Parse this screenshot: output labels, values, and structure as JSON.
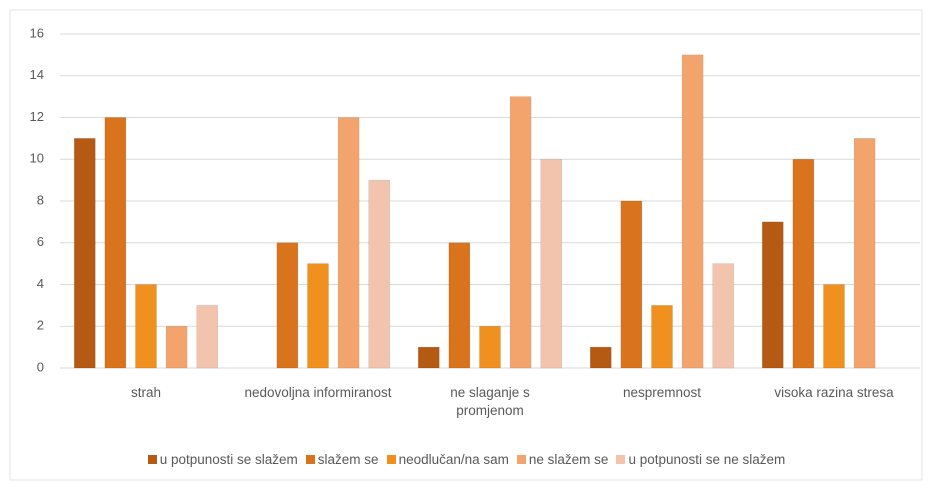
{
  "chart_data": {
    "type": "bar",
    "categories": [
      "strah",
      "nedovoljna informiranost",
      "ne slaganje s promjenom",
      "nespremnost",
      "visoka razina stresa"
    ],
    "series": [
      {
        "name": "u potpunosti se slažem",
        "color": "#b55a12",
        "values": [
          11,
          0,
          1,
          1,
          7
        ]
      },
      {
        "name": "slažem se",
        "color": "#d9731c",
        "values": [
          12,
          6,
          6,
          8,
          10
        ]
      },
      {
        "name": "neodlučan/na sam",
        "color": "#f0901f",
        "values": [
          4,
          5,
          2,
          3,
          4
        ]
      },
      {
        "name": "ne slažem se",
        "color": "#f2a46c",
        "values": [
          2,
          12,
          13,
          15,
          11
        ]
      },
      {
        "name": "u potpunosti se ne slažem",
        "color": "#f2c4ae",
        "values": [
          3,
          9,
          10,
          5,
          0
        ]
      }
    ],
    "ylim": [
      0,
      16
    ],
    "yticks": [
      0,
      2,
      4,
      6,
      8,
      10,
      12,
      14,
      16
    ],
    "grid": true,
    "legend": "bottom"
  }
}
